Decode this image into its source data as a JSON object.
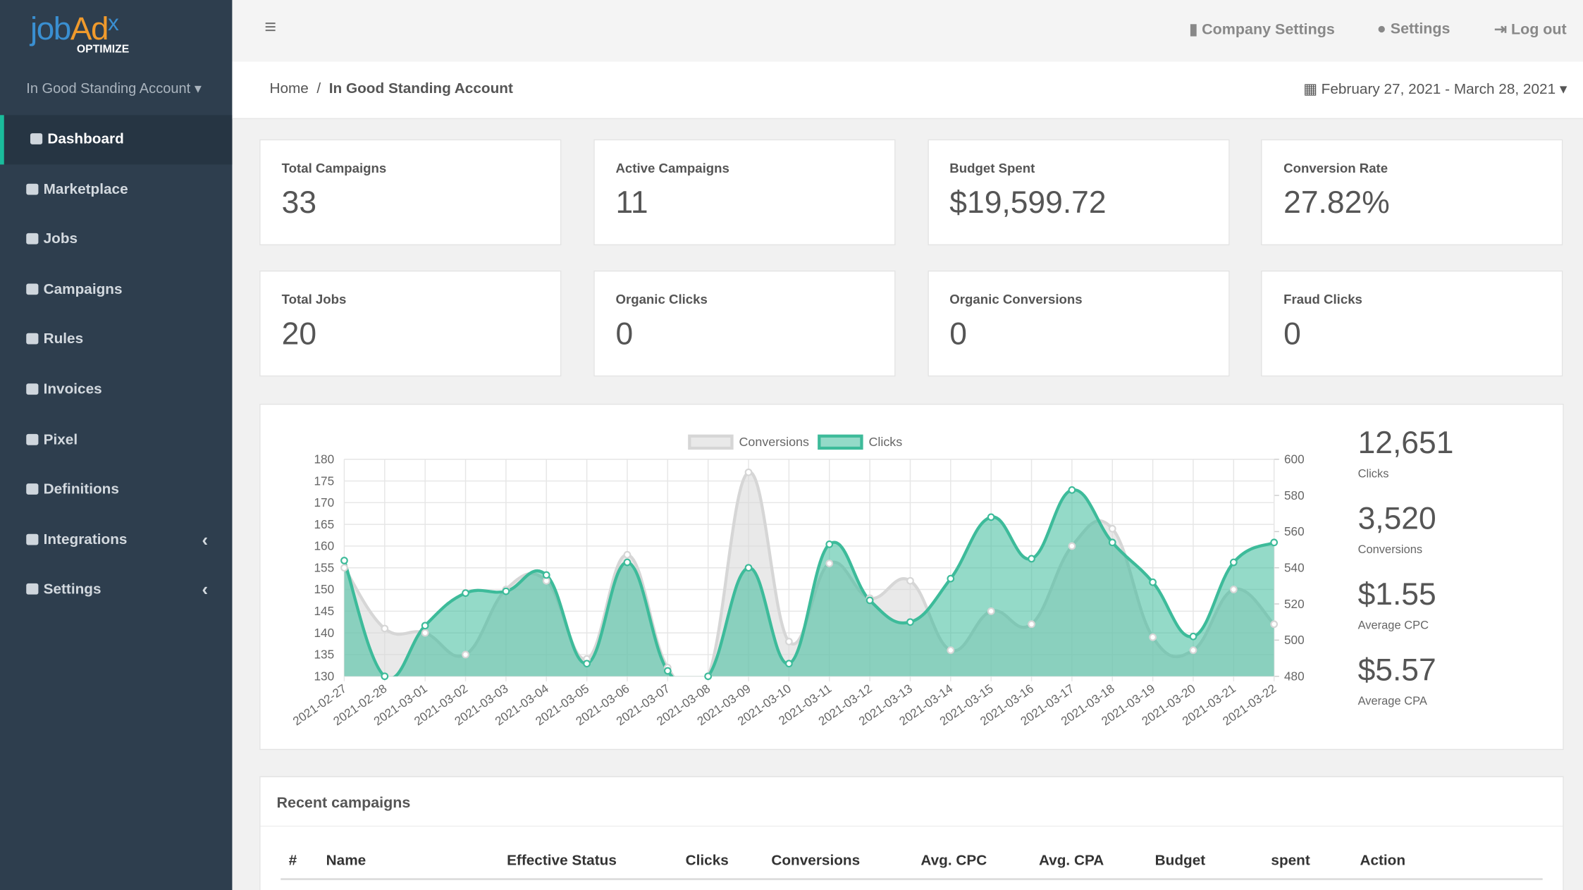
{
  "logo": {
    "part1": "job",
    "part2": "Ad",
    "part3": "x",
    "tagline": "OPTIMIZE"
  },
  "account": "In Good Standing Account",
  "sidebar": [
    "Dashboard",
    "Marketplace",
    "Jobs",
    "Campaigns",
    "Rules",
    "Invoices",
    "Pixel",
    "Definitions",
    "Integrations",
    "Settings"
  ],
  "header": {
    "links": [
      "Company Settings",
      "Settings",
      "Log out"
    ]
  },
  "breadcrumb": {
    "home": "Home",
    "current": "In Good Standing Account",
    "date_range": "February 27, 2021 - March 28, 2021"
  },
  "stats": [
    {
      "label": "Total Campaigns",
      "value": "33"
    },
    {
      "label": "Active Campaigns",
      "value": "11"
    },
    {
      "label": "Budget Spent",
      "value": "$19,599.72"
    },
    {
      "label": "Conversion Rate",
      "value": "27.82%"
    },
    {
      "label": "Total Jobs",
      "value": "20"
    },
    {
      "label": "Organic Clicks",
      "value": "0"
    },
    {
      "label": "Organic Conversions",
      "value": "0"
    },
    {
      "label": "Fraud Clicks",
      "value": "0"
    }
  ],
  "chart_data": {
    "type": "line",
    "categories": [
      "2021-02-27",
      "2021-02-28",
      "2021-03-01",
      "2021-03-02",
      "2021-03-03",
      "2021-03-04",
      "2021-03-05",
      "2021-03-06",
      "2021-03-07",
      "2021-03-08",
      "2021-03-09",
      "2021-03-10",
      "2021-03-11",
      "2021-03-12",
      "2021-03-13",
      "2021-03-14",
      "2021-03-15",
      "2021-03-16",
      "2021-03-17",
      "2021-03-18",
      "2021-03-19",
      "2021-03-20",
      "2021-03-21",
      "2021-03-22"
    ],
    "series": [
      {
        "name": "Conversions",
        "color": "#d6d6d6",
        "values": [
          155,
          141,
          140,
          135,
          150,
          152,
          134,
          158,
          132,
          130,
          177,
          138,
          156,
          148,
          152,
          136,
          145,
          142,
          160,
          164,
          139,
          136,
          150,
          142
        ]
      },
      {
        "name": "Clicks",
        "color": "#3dbb9a",
        "axis": "y2",
        "values": [
          544,
          480,
          508,
          526,
          527,
          536,
          487,
          543,
          483,
          480,
          540,
          487,
          553,
          522,
          510,
          534,
          568,
          545,
          583,
          554,
          532,
          502,
          543,
          554
        ]
      }
    ],
    "ylim": [
      130,
      180
    ],
    "yticks": [
      130,
      135,
      140,
      145,
      150,
      155,
      160,
      165,
      170,
      175,
      180
    ],
    "y2lim": [
      480,
      600
    ],
    "y2ticks": [
      480,
      500,
      520,
      540,
      560,
      580,
      600
    ],
    "grid": true,
    "legend": "top"
  },
  "summary": [
    {
      "value": "12,651",
      "label": "Clicks"
    },
    {
      "value": "3,520",
      "label": "Conversions"
    },
    {
      "value": "$1.55",
      "label": "Average CPC"
    },
    {
      "value": "$5.57",
      "label": "Average CPA"
    }
  ],
  "table": {
    "title": "Recent campaigns",
    "columns": [
      "#",
      "Name",
      "Effective Status",
      "Clicks",
      "Conversions",
      "Avg. CPC",
      "Avg. CPA",
      "Budget",
      "spent",
      "Action"
    ]
  }
}
